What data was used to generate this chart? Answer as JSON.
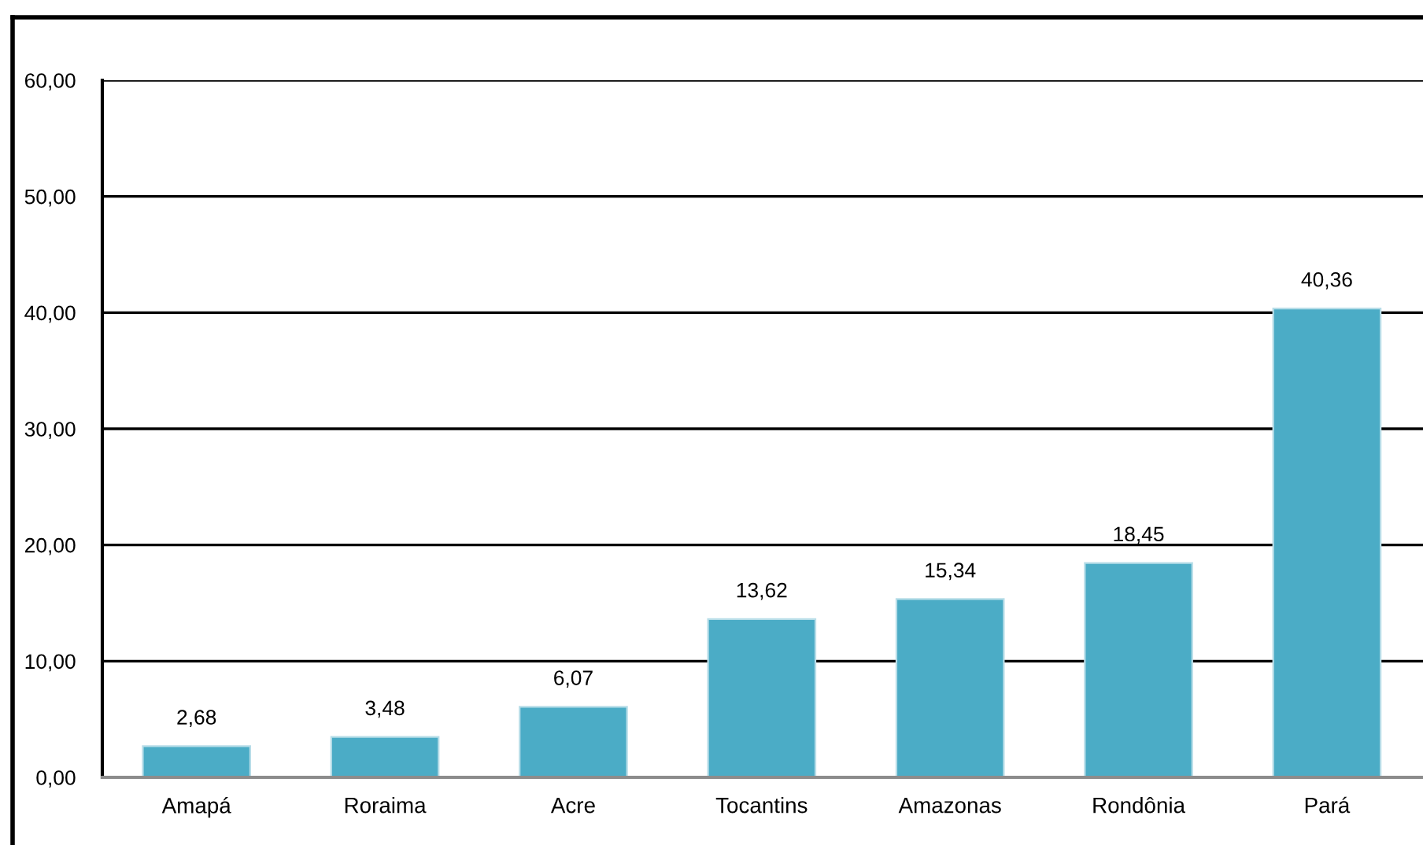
{
  "chart_data": {
    "type": "bar",
    "categories": [
      "Amapá",
      "Roraima",
      "Acre",
      "Tocantins",
      "Amazonas",
      "Rondônia",
      "Pará"
    ],
    "values": [
      2.68,
      3.48,
      6.07,
      13.62,
      15.34,
      18.45,
      40.36
    ],
    "value_labels": [
      "2,68",
      "3,48",
      "6,07",
      "13,62",
      "15,34",
      "18,45",
      "40,36"
    ],
    "color": "#4bacc6",
    "ylim": [
      0,
      60
    ],
    "yticks": [
      {
        "value": 0,
        "label": "0,00"
      },
      {
        "value": 10,
        "label": "10,00"
      },
      {
        "value": 20,
        "label": "20,00"
      },
      {
        "value": 30,
        "label": "30,00"
      },
      {
        "value": 40,
        "label": "40,00"
      },
      {
        "value": 50,
        "label": "50,00"
      },
      {
        "value": 60,
        "label": "60,00"
      }
    ],
    "grid": "y",
    "legend": false
  }
}
